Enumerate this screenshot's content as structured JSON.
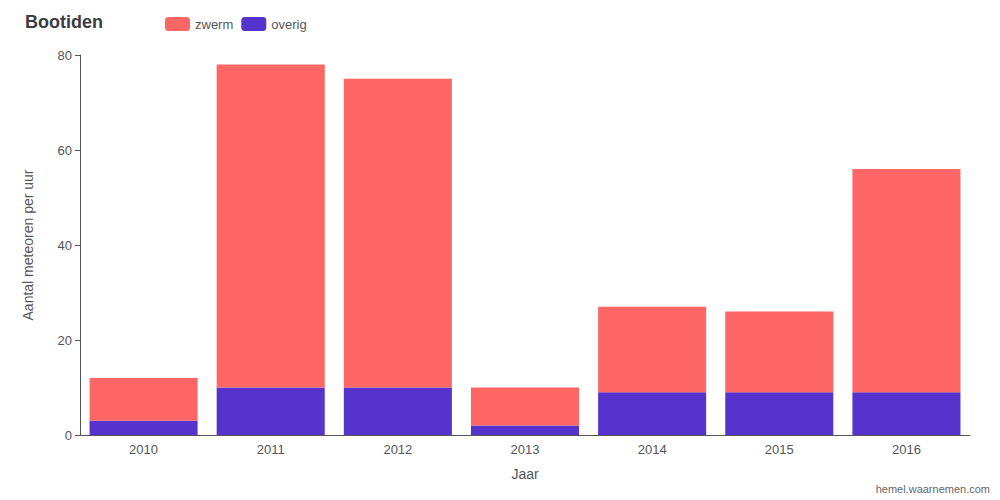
{
  "chart_data": {
    "type": "bar",
    "title": "Bootiden",
    "xlabel": "Jaar",
    "ylabel": "Aantal meteoren per uur",
    "categories": [
      "2010",
      "2011",
      "2012",
      "2013",
      "2014",
      "2015",
      "2016"
    ],
    "series": [
      {
        "name": "overig",
        "color": "#5533CC",
        "values": [
          3,
          10,
          10,
          2,
          9,
          9,
          9
        ]
      },
      {
        "name": "zwerm",
        "color": "#FF6666",
        "values": [
          9,
          68,
          65,
          8,
          18,
          17,
          47
        ]
      }
    ],
    "stacked": true,
    "ylim": [
      0,
      80
    ],
    "yticks": [
      0,
      20,
      40,
      60,
      80
    ],
    "grid": false,
    "legend": "upper left",
    "annotations": [
      "hemel.waarnemen.com"
    ]
  }
}
